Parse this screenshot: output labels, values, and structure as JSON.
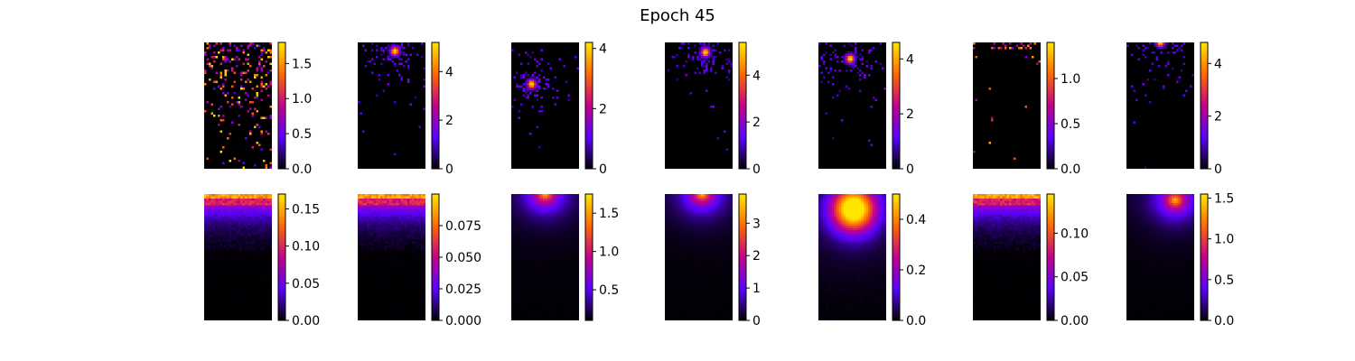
{
  "figure": {
    "title": "Epoch 45"
  },
  "colormap": {
    "name": "gnuplot",
    "stops": [
      "#000000",
      "#5a00ff",
      "#c4008c",
      "#ff6a00",
      "#ffe600"
    ]
  },
  "chart_data": [
    {
      "type": "heatmap",
      "row": 1,
      "col": 1,
      "pattern": "sparse-scatter",
      "vmin": 0,
      "vmax": 1.8,
      "colorbar_ticks": [
        "0.0",
        "0.5",
        "1.0",
        "1.5"
      ],
      "colorbar_tick_values": [
        0,
        0.5,
        1.0,
        1.5
      ]
    },
    {
      "type": "heatmap",
      "row": 1,
      "col": 2,
      "pattern": "sparse-peak",
      "peak_value": 5.0,
      "peak_center": [
        0.55,
        0.07
      ],
      "vmin": 0,
      "vmax": 5.2,
      "colorbar_ticks": [
        "0",
        "2",
        "4"
      ],
      "colorbar_tick_values": [
        0,
        2,
        4
      ]
    },
    {
      "type": "heatmap",
      "row": 1,
      "col": 3,
      "pattern": "sparse-peak",
      "peak_value": 4.0,
      "peak_center": [
        0.3,
        0.33
      ],
      "vmin": 0,
      "vmax": 4.2,
      "colorbar_ticks": [
        "0",
        "2",
        "4"
      ],
      "colorbar_tick_values": [
        0,
        2,
        4
      ]
    },
    {
      "type": "heatmap",
      "row": 1,
      "col": 4,
      "pattern": "sparse-peak",
      "peak_value": 5.0,
      "peak_center": [
        0.6,
        0.08
      ],
      "vmin": 0,
      "vmax": 5.4,
      "colorbar_ticks": [
        "0",
        "2",
        "4"
      ],
      "colorbar_tick_values": [
        0,
        2,
        4
      ]
    },
    {
      "type": "heatmap",
      "row": 1,
      "col": 5,
      "pattern": "sparse-peak",
      "peak_value": 4.2,
      "peak_center": [
        0.47,
        0.13
      ],
      "vmin": 0,
      "vmax": 4.6,
      "colorbar_ticks": [
        "0",
        "2",
        "4"
      ],
      "colorbar_tick_values": [
        0,
        2,
        4
      ]
    },
    {
      "type": "heatmap",
      "row": 1,
      "col": 6,
      "pattern": "sparse-scatter-top",
      "vmin": 0,
      "vmax": 1.4,
      "colorbar_ticks": [
        "0.0",
        "0.5",
        "1.0"
      ],
      "colorbar_tick_values": [
        0,
        0.5,
        1.0
      ]
    },
    {
      "type": "heatmap",
      "row": 1,
      "col": 7,
      "pattern": "sparse-peak",
      "peak_value": 4.5,
      "peak_center": [
        0.5,
        0.0
      ],
      "vmin": 0,
      "vmax": 4.8,
      "colorbar_ticks": [
        "0",
        "2",
        "4"
      ],
      "colorbar_tick_values": [
        0,
        2,
        4
      ]
    },
    {
      "type": "heatmap",
      "row": 2,
      "col": 1,
      "pattern": "top-band",
      "vmin": 0,
      "vmax": 0.17,
      "colorbar_ticks": [
        "0.00",
        "0.05",
        "0.10",
        "0.15"
      ],
      "colorbar_tick_values": [
        0,
        0.05,
        0.1,
        0.15
      ]
    },
    {
      "type": "heatmap",
      "row": 2,
      "col": 2,
      "pattern": "top-band",
      "vmin": 0,
      "vmax": 0.1,
      "colorbar_ticks": [
        "0.000",
        "0.025",
        "0.050",
        "0.075"
      ],
      "colorbar_tick_values": [
        0,
        0.025,
        0.05,
        0.075
      ]
    },
    {
      "type": "heatmap",
      "row": 2,
      "col": 3,
      "pattern": "smooth-top-peak",
      "peak_center": [
        0.5,
        0.0
      ],
      "vmin": 0.1,
      "vmax": 1.75,
      "colorbar_ticks": [
        "0.5",
        "1.0",
        "1.5"
      ],
      "colorbar_tick_values": [
        0.5,
        1.0,
        1.5
      ]
    },
    {
      "type": "heatmap",
      "row": 2,
      "col": 4,
      "pattern": "smooth-top-peak",
      "peak_center": [
        0.55,
        0.0
      ],
      "vmin": 0,
      "vmax": 3.9,
      "colorbar_ticks": [
        "0",
        "1",
        "2",
        "3"
      ],
      "colorbar_tick_values": [
        0,
        1,
        2,
        3
      ]
    },
    {
      "type": "heatmap",
      "row": 2,
      "col": 5,
      "pattern": "smooth-wide-peak",
      "peak_center": [
        0.52,
        0.12
      ],
      "vmin": 0,
      "vmax": 0.5,
      "colorbar_ticks": [
        "0.0",
        "0.2",
        "0.4"
      ],
      "colorbar_tick_values": [
        0,
        0.2,
        0.4
      ]
    },
    {
      "type": "heatmap",
      "row": 2,
      "col": 6,
      "pattern": "top-band",
      "vmin": 0,
      "vmax": 0.145,
      "colorbar_ticks": [
        "0.00",
        "0.05",
        "0.10"
      ],
      "colorbar_tick_values": [
        0,
        0.05,
        0.1
      ]
    },
    {
      "type": "heatmap",
      "row": 2,
      "col": 7,
      "pattern": "smooth-top-peak",
      "peak_center": [
        0.72,
        0.05
      ],
      "vmin": 0,
      "vmax": 1.55,
      "colorbar_ticks": [
        "0.0",
        "0.5",
        "1.0",
        "1.5"
      ],
      "colorbar_tick_values": [
        0,
        0.5,
        1.0,
        1.5
      ]
    }
  ]
}
